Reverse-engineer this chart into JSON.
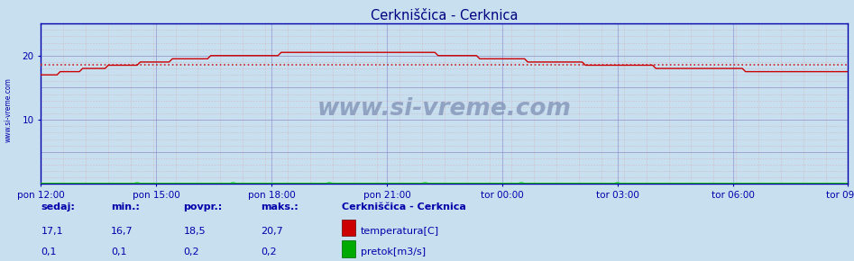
{
  "title": "Cerkniščica - Cerknica",
  "title_color": "#000080",
  "bg_color": "#c8dff0",
  "plot_bg_color": "#c8dff0",
  "x_tick_labels": [
    "pon 12:00",
    "pon 15:00",
    "pon 18:00",
    "pon 21:00",
    "tor 00:00",
    "tor 03:00",
    "tor 06:00",
    "tor 09:00"
  ],
  "x_tick_positions": [
    0,
    36,
    72,
    108,
    144,
    180,
    216,
    252
  ],
  "x_total_points": 252,
  "y_min": 0,
  "y_max": 25,
  "y_ticks": [
    10,
    20
  ],
  "avg_line_value": 18.5,
  "avg_line_color": "#cc4444",
  "temp_color": "#cc0000",
  "flow_color": "#00cc00",
  "flow_outline_color": "#0000cc",
  "watermark": "www.si-vreme.com",
  "watermark_color": "#8899bb",
  "left_label": "www.si-vreme.com",
  "left_label_color": "#0000aa",
  "sedaj_label": "sedaj:",
  "min_label": "min.:",
  "povpr_label": "povpr.:",
  "maks_label": "maks.:",
  "temp_sedaj": "17,1",
  "temp_min": "16,7",
  "temp_povpr": "18,5",
  "temp_maks": "20,7",
  "flow_sedaj": "0,1",
  "flow_min": "0,1",
  "flow_povpr": "0,2",
  "flow_maks": "0,2",
  "legend_title": "Cerkniščica - Cerknica",
  "legend_temp": "temperatura[C]",
  "legend_flow": "pretok[m3/s]",
  "axis_color": "#0000aa",
  "tick_color": "#0000aa",
  "stat_header_color": "#0000aa",
  "stat_value_color": "#0000aa"
}
